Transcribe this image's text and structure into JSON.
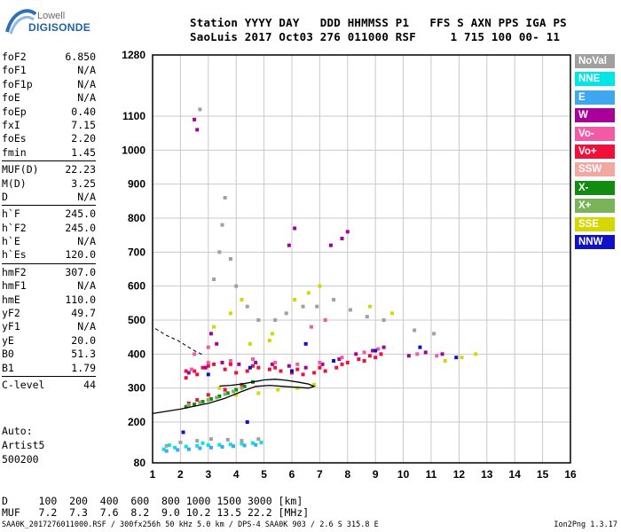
{
  "logo": {
    "line1": "Lowell",
    "line2": "DIGISONDE"
  },
  "header": {
    "line1": "Station YYYY DAY   DDD HHMMSS P1   FFS S AXN PPS IGA PS",
    "line2": "SaoLuis 2017 Oct03 276 011000 RSF     1 715 100 00- 11"
  },
  "params": {
    "group1": [
      {
        "name": "foF2",
        "value": "6.850"
      },
      {
        "name": "foF1",
        "value": "N/A"
      },
      {
        "name": "foF1p",
        "value": "N/A"
      },
      {
        "name": "foE",
        "value": "N/A"
      },
      {
        "name": "foEp",
        "value": "0.40"
      },
      {
        "name": "fxI",
        "value": "7.15"
      },
      {
        "name": "foEs",
        "value": "2.20"
      },
      {
        "name": "fmin",
        "value": "1.45"
      }
    ],
    "group2": [
      {
        "name": "MUF(D)",
        "value": "22.23"
      },
      {
        "name": "M(D)",
        "value": "3.25"
      },
      {
        "name": "D",
        "value": "N/A"
      }
    ],
    "group3": [
      {
        "name": "h`F",
        "value": "245.0"
      },
      {
        "name": "h`F2",
        "value": "245.0"
      },
      {
        "name": "h`E",
        "value": "N/A"
      },
      {
        "name": "h`Es",
        "value": "120.0"
      }
    ],
    "group4": [
      {
        "name": "hmF2",
        "value": "307.0"
      },
      {
        "name": "hmF1",
        "value": "N/A"
      },
      {
        "name": "hmE",
        "value": "110.0"
      },
      {
        "name": "yF2",
        "value": "49.7"
      },
      {
        "name": "yF1",
        "value": "N/A"
      },
      {
        "name": "yE",
        "value": "20.0"
      },
      {
        "name": "B0",
        "value": "51.3"
      },
      {
        "name": "B1",
        "value": "1.79"
      }
    ],
    "group5": [
      {
        "name": "C-level",
        "value": "44"
      }
    ]
  },
  "auto": {
    "line1": "Auto:",
    "line2": "Artist5",
    "line3": "500200"
  },
  "dmuf": {
    "line1": "D     100  200  400  600  800 1000 1500 3000 [km]",
    "line2": "MUF   7.2  7.3  7.6  8.2  9.0 10.2 13.5 22.2 [MHz]"
  },
  "footer": {
    "left": "SAA0K_2017276011000.RSF / 300fx256h 50 kHz 5.0 km / DPS-4 SAA0K 903 / 2.6 S 315.8 E",
    "right": "Ion2Png 1.3.17"
  },
  "legend": [
    {
      "label": "NoVal",
      "color": "#a0a0a0"
    },
    {
      "label": "NNE",
      "color": "#00e5e5"
    },
    {
      "label": "E",
      "color": "#3fa6f0"
    },
    {
      "label": "W",
      "color": "#a8009a"
    },
    {
      "label": "Vo-",
      "color": "#f25aa6"
    },
    {
      "label": "Vo+",
      "color": "#f0103a"
    },
    {
      "label": "SSW",
      "color": "#f2a8a0"
    },
    {
      "label": "X-",
      "color": "#118c11"
    },
    {
      "label": "X+",
      "color": "#7ab35a"
    },
    {
      "label": "SSE",
      "color": "#d6d600"
    },
    {
      "label": "NNW",
      "color": "#1010c8"
    }
  ],
  "chart_data": {
    "type": "scatter",
    "title": "",
    "xlabel": "",
    "ylabel": "",
    "xlim": [
      1,
      16
    ],
    "ylim": [
      80,
      1280
    ],
    "x_ticks": [
      "1",
      "2",
      "3",
      "4",
      "5",
      "6",
      "7",
      "8",
      "9",
      "10",
      "11",
      "12",
      "13",
      "14",
      "15",
      "16"
    ],
    "y_ticks": [
      "80",
      "200",
      "300",
      "400",
      "500",
      "600",
      "700",
      "800",
      "900",
      "1000",
      "1100",
      "1280"
    ],
    "grid": true,
    "legend_position": "right",
    "series": [
      {
        "color_key": "Vo+",
        "points": [
          [
            2.2,
            330
          ],
          [
            2.5,
            350
          ],
          [
            2.8,
            360
          ],
          [
            3.2,
            370
          ],
          [
            3.6,
            355
          ],
          [
            4.0,
            345
          ],
          [
            4.4,
            350
          ],
          [
            4.8,
            360
          ],
          [
            5.2,
            355
          ],
          [
            5.6,
            350
          ],
          [
            6.0,
            345
          ],
          [
            6.4,
            340
          ],
          [
            6.8,
            345
          ],
          [
            7.2,
            350
          ],
          [
            7.6,
            360
          ],
          [
            8.0,
            375
          ],
          [
            8.4,
            385
          ],
          [
            8.8,
            395
          ],
          [
            9.2,
            400
          ],
          [
            9.0,
            390
          ],
          [
            8.6,
            380
          ],
          [
            7.8,
            370
          ],
          [
            7.0,
            360
          ],
          [
            6.2,
            355
          ],
          [
            5.4,
            360
          ],
          [
            4.6,
            365
          ],
          [
            3.8,
            370
          ],
          [
            3.0,
            365
          ],
          [
            2.6,
            340
          ],
          [
            2.2,
            350
          ],
          [
            4.2,
            310
          ],
          [
            3.6,
            295
          ],
          [
            3.0,
            280
          ],
          [
            2.6,
            265
          ],
          [
            2.3,
            255
          ]
        ]
      },
      {
        "color_key": "W",
        "points": [
          [
            2.3,
            345
          ],
          [
            2.9,
            360
          ],
          [
            3.5,
            375
          ],
          [
            4.1,
            370
          ],
          [
            4.7,
            375
          ],
          [
            5.3,
            370
          ],
          [
            5.9,
            365
          ],
          [
            6.5,
            360
          ],
          [
            7.1,
            370
          ],
          [
            7.7,
            385
          ],
          [
            8.3,
            400
          ],
          [
            8.9,
            410
          ],
          [
            9.3,
            420
          ],
          [
            10.2,
            395
          ],
          [
            10.8,
            405
          ],
          [
            11.4,
            400
          ],
          [
            3.3,
            430
          ],
          [
            3.1,
            460
          ],
          [
            7.4,
            720
          ],
          [
            7.8,
            740
          ],
          [
            8.0,
            760
          ],
          [
            5.9,
            720
          ],
          [
            6.1,
            770
          ],
          [
            2.6,
            1060
          ],
          [
            2.5,
            1090
          ]
        ]
      },
      {
        "color_key": "Vo-",
        "points": [
          [
            2.4,
            355
          ],
          [
            3.0,
            375
          ],
          [
            3.8,
            380
          ],
          [
            4.6,
            385
          ],
          [
            5.4,
            375
          ],
          [
            6.2,
            370
          ],
          [
            7.0,
            375
          ],
          [
            7.8,
            390
          ],
          [
            8.6,
            405
          ],
          [
            9.1,
            415
          ],
          [
            10.5,
            400
          ],
          [
            11.2,
            395
          ],
          [
            2.5,
            400
          ],
          [
            3.0,
            420
          ],
          [
            6.7,
            480
          ],
          [
            7.2,
            500
          ]
        ]
      },
      {
        "color_key": "X-",
        "points": [
          [
            2.2,
            245
          ],
          [
            2.5,
            252
          ],
          [
            2.8,
            260
          ],
          [
            3.1,
            268
          ],
          [
            3.4,
            276
          ],
          [
            3.7,
            285
          ],
          [
            4.0,
            295
          ],
          [
            4.3,
            305
          ],
          [
            4.6,
            318
          ]
        ]
      },
      {
        "color_key": "X+",
        "points": [
          [
            2.3,
            250
          ],
          [
            2.7,
            258
          ],
          [
            3.0,
            265
          ],
          [
            3.3,
            272
          ],
          [
            3.6,
            282
          ],
          [
            3.9,
            290
          ],
          [
            4.2,
            300
          ]
        ]
      },
      {
        "color_key": "SSE",
        "points": [
          [
            3.4,
            300
          ],
          [
            4.0,
            280
          ],
          [
            4.8,
            285
          ],
          [
            5.5,
            295
          ],
          [
            6.2,
            300
          ],
          [
            6.8,
            310
          ],
          [
            5.3,
            460
          ],
          [
            6.1,
            560
          ],
          [
            6.6,
            580
          ],
          [
            7.0,
            600
          ],
          [
            3.2,
            480
          ],
          [
            3.8,
            520
          ],
          [
            4.2,
            560
          ],
          [
            11.5,
            380
          ],
          [
            12.1,
            390
          ],
          [
            12.6,
            400
          ],
          [
            8.8,
            540
          ],
          [
            9.6,
            520
          ],
          [
            5.2,
            440
          ],
          [
            4.5,
            430
          ]
        ]
      },
      {
        "color_key": "NNE",
        "points": [
          [
            1.4,
            120
          ],
          [
            1.8,
            125
          ],
          [
            2.2,
            128
          ],
          [
            2.6,
            130
          ],
          [
            3.0,
            132
          ],
          [
            3.4,
            133
          ],
          [
            3.8,
            134
          ],
          [
            4.2,
            136
          ],
          [
            4.6,
            138
          ],
          [
            4.9,
            140
          ],
          [
            1.6,
            132
          ],
          [
            2.8,
            138
          ]
        ]
      },
      {
        "color_key": "E",
        "points": [
          [
            1.5,
            115
          ],
          [
            1.9,
            118
          ],
          [
            2.3,
            120
          ],
          [
            2.7,
            123
          ],
          [
            3.1,
            125
          ],
          [
            3.5,
            127
          ],
          [
            3.9,
            129
          ],
          [
            4.3,
            131
          ],
          [
            4.7,
            133
          ]
        ]
      },
      {
        "color_key": "NNW",
        "points": [
          [
            3.0,
            340
          ],
          [
            4.5,
            360
          ],
          [
            6.0,
            350
          ],
          [
            7.5,
            380
          ],
          [
            9.0,
            410
          ],
          [
            10.6,
            420
          ],
          [
            11.9,
            390
          ],
          [
            2.1,
            170
          ],
          [
            4.4,
            200
          ],
          [
            6.5,
            430
          ]
        ]
      },
      {
        "color_key": "NoVal",
        "points": [
          [
            1.5,
            130
          ],
          [
            2.0,
            140
          ],
          [
            2.6,
            145
          ],
          [
            3.1,
            150
          ],
          [
            3.7,
            148
          ],
          [
            4.2,
            145
          ],
          [
            4.8,
            150
          ],
          [
            3.2,
            620
          ],
          [
            3.4,
            700
          ],
          [
            3.5,
            780
          ],
          [
            3.6,
            860
          ],
          [
            3.8,
            680
          ],
          [
            4.0,
            600
          ],
          [
            4.4,
            540
          ],
          [
            4.8,
            500
          ],
          [
            5.4,
            500
          ],
          [
            5.8,
            520
          ],
          [
            6.4,
            540
          ],
          [
            6.9,
            540
          ],
          [
            7.5,
            560
          ],
          [
            8.1,
            530
          ],
          [
            8.7,
            510
          ],
          [
            9.3,
            500
          ],
          [
            10.4,
            470
          ],
          [
            11.1,
            460
          ],
          [
            2.7,
            1120
          ]
        ]
      }
    ],
    "profile_curve": [
      [
        1,
        225
      ],
      [
        2,
        238
      ],
      [
        3,
        255
      ],
      [
        3.6,
        270
      ],
      [
        4.2,
        290
      ],
      [
        4.7,
        305
      ],
      [
        5.2,
        308
      ],
      [
        5.7,
        305
      ],
      [
        6.2,
        302
      ],
      [
        6.6,
        300
      ],
      [
        6.8,
        305
      ],
      [
        6.6,
        312
      ],
      [
        6.2,
        318
      ],
      [
        5.8,
        323
      ],
      [
        5.4,
        326
      ],
      [
        5.0,
        324
      ],
      [
        4.6,
        318
      ],
      [
        4.2,
        312
      ],
      [
        3.8,
        308
      ],
      [
        3.4,
        306
      ]
    ],
    "dashed_curve": [
      [
        1.1,
        475
      ],
      [
        1.5,
        455
      ],
      [
        1.9,
        440
      ],
      [
        2.2,
        425
      ],
      [
        2.5,
        410
      ],
      [
        2.8,
        398
      ]
    ]
  }
}
